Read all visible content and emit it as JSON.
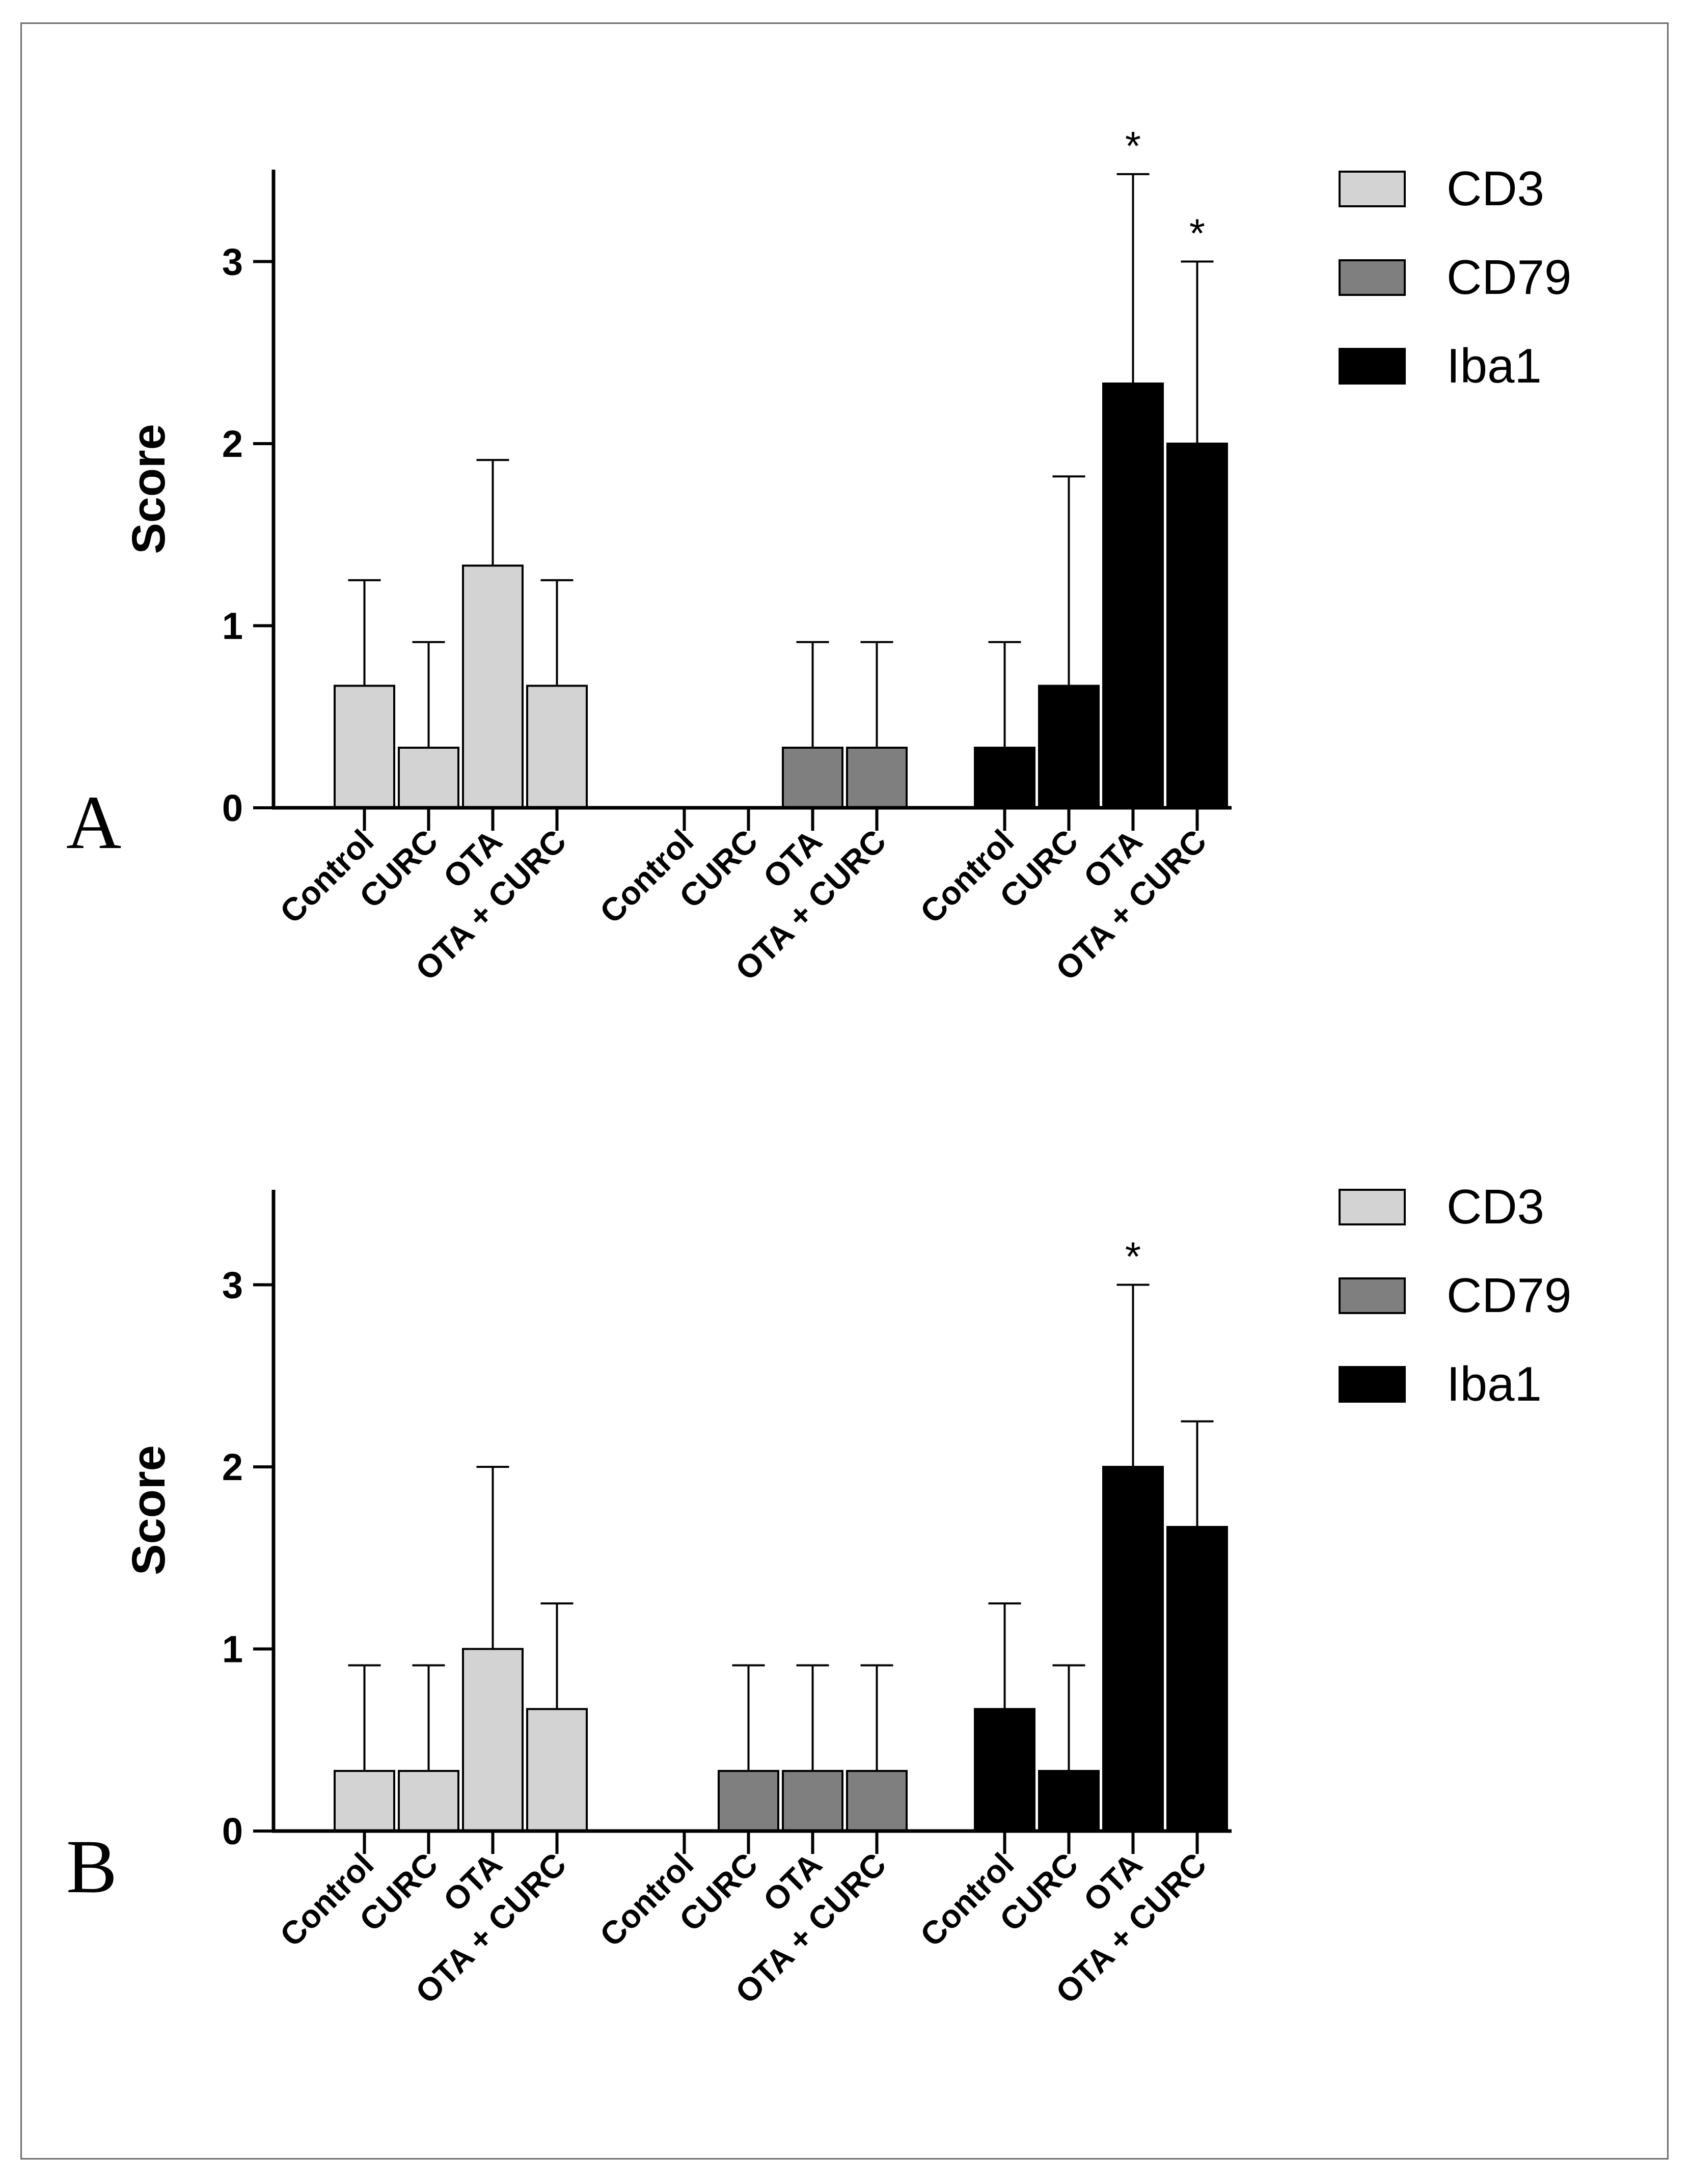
{
  "chart_data": [
    {
      "panel": "A",
      "type": "bar",
      "ylabel": "Score",
      "ylim": [
        0,
        3.5
      ],
      "yticks": [
        0,
        1,
        2,
        3
      ],
      "categories": [
        "Control",
        "CURC",
        "OTA",
        "OTA + CURC"
      ],
      "series": [
        {
          "name": "CD3",
          "color": "#d3d3d3",
          "values": [
            0.67,
            0.33,
            1.33,
            0.67
          ],
          "errors": [
            0.58,
            0.58,
            0.58,
            0.58
          ],
          "significance": [
            "",
            "",
            "",
            ""
          ]
        },
        {
          "name": "CD79",
          "color": "#7f7f7f",
          "values": [
            0,
            0,
            0.33,
            0.33
          ],
          "errors": [
            0,
            0,
            0.58,
            0.58
          ],
          "significance": [
            "",
            "",
            "",
            ""
          ]
        },
        {
          "name": "Iba1",
          "color": "#000000",
          "values": [
            0.33,
            0.67,
            2.33,
            2.0
          ],
          "errors": [
            0.58,
            1.15,
            1.15,
            1.0
          ],
          "significance": [
            "",
            "",
            "*",
            "*"
          ]
        }
      ]
    },
    {
      "panel": "B",
      "type": "bar",
      "ylabel": "Score",
      "ylim": [
        0,
        3.5
      ],
      "yticks": [
        0,
        1,
        2,
        3
      ],
      "categories": [
        "Control",
        "CURC",
        "OTA",
        "OTA + CURC"
      ],
      "series": [
        {
          "name": "CD3",
          "color": "#d3d3d3",
          "values": [
            0.33,
            0.33,
            1.0,
            0.67
          ],
          "errors": [
            0.58,
            0.58,
            1.0,
            0.58
          ],
          "significance": [
            "",
            "",
            "",
            ""
          ]
        },
        {
          "name": "CD79",
          "color": "#7f7f7f",
          "values": [
            0,
            0.33,
            0.33,
            0.33
          ],
          "errors": [
            0,
            0.58,
            0.58,
            0.58
          ],
          "significance": [
            "",
            "",
            "",
            ""
          ]
        },
        {
          "name": "Iba1",
          "color": "#000000",
          "values": [
            0.67,
            0.33,
            2.0,
            1.67
          ],
          "errors": [
            0.58,
            0.58,
            1.0,
            0.58
          ],
          "significance": [
            "",
            "",
            "*",
            ""
          ]
        }
      ]
    }
  ]
}
